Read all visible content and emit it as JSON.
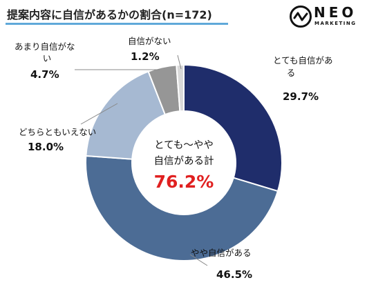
{
  "title": "提案内容に自信があるかの割合(n=172)",
  "logo": {
    "word": "NEO",
    "sub": "MARKETING"
  },
  "center": {
    "line1": "とても～やや",
    "line2": "自信がある計",
    "value": "76.2%"
  },
  "colors": {
    "title_underline": "#5fa8d9",
    "center_value": "#e02020"
  },
  "chart_data": {
    "type": "pie",
    "donut": true,
    "title": "提案内容に自信があるかの割合(n=172)",
    "start": "top",
    "direction": "clockwise",
    "slices": [
      {
        "label": "とても自信がある",
        "label_lines": [
          "とても自信があ",
          "る"
        ],
        "value": 29.7,
        "value_label": "29.7%",
        "color": "#1f2d6b"
      },
      {
        "label": "やや自信がある",
        "label_lines": [
          "やや自信がある"
        ],
        "value": 46.5,
        "value_label": "46.5%",
        "color": "#4c6c95"
      },
      {
        "label": "どちらともいえない",
        "label_lines": [
          "どちらともいえない"
        ],
        "value": 18.0,
        "value_label": "18.0%",
        "color": "#a6b9d2"
      },
      {
        "label": "あまり自信がない",
        "label_lines": [
          "あまり自信がな",
          "い"
        ],
        "value": 4.7,
        "value_label": "4.7%",
        "color": "#969696"
      },
      {
        "label": "自信がない",
        "label_lines": [
          "自信がない"
        ],
        "value": 1.2,
        "value_label": "1.2%",
        "color": "#d9d9d9"
      }
    ]
  }
}
